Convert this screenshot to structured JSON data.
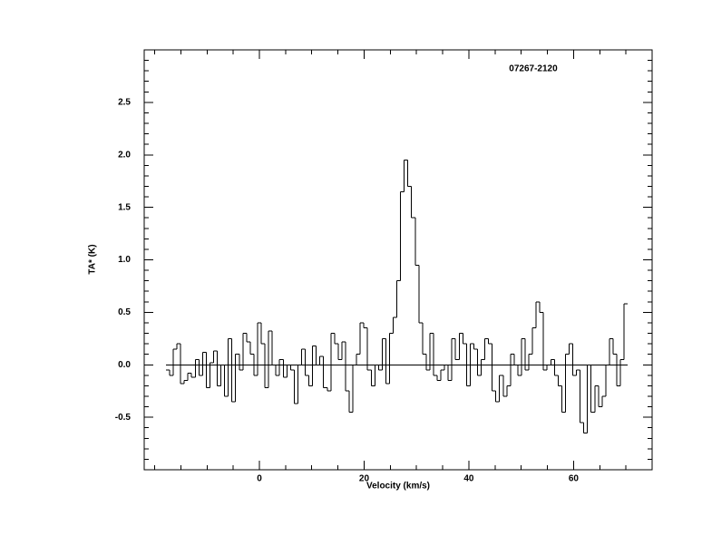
{
  "chart_data": {
    "type": "step",
    "annotation": "07267-2120",
    "xlabel": "Velocity (km/s)",
    "ylabel": "TA* (K)",
    "xlim": [
      -22,
      75
    ],
    "ylim": [
      -1,
      3
    ],
    "xticks": [
      0,
      20,
      40,
      60
    ],
    "yticks": [
      -0.5,
      {
        "value": 0,
        "label": "0.0"
      },
      0.5,
      {
        "value": 1,
        "label": "1.0"
      },
      1.5,
      {
        "value": 2,
        "label": "2.0"
      },
      2.5
    ],
    "baseline": 0,
    "color": "#000000",
    "x": [
      -17.5,
      -16.8,
      -16.1,
      -15.4,
      -14.7,
      -14.0,
      -13.3,
      -12.6,
      -11.9,
      -11.2,
      -10.5,
      -9.8,
      -9.1,
      -8.4,
      -7.7,
      -7.0,
      -6.3,
      -5.6,
      -4.9,
      -4.2,
      -3.5,
      -2.8,
      -2.1,
      -1.4,
      -0.7,
      0.0,
      0.7,
      1.4,
      2.1,
      2.8,
      3.5,
      4.2,
      4.9,
      5.6,
      6.3,
      7.0,
      7.7,
      8.4,
      9.1,
      9.8,
      10.5,
      11.2,
      11.9,
      12.6,
      13.3,
      14.0,
      14.7,
      15.4,
      16.1,
      16.8,
      17.5,
      18.2,
      18.9,
      19.6,
      20.3,
      21.0,
      21.7,
      22.4,
      23.1,
      23.8,
      24.5,
      25.2,
      25.9,
      26.6,
      27.3,
      28.0,
      28.7,
      29.4,
      30.1,
      30.8,
      31.5,
      32.2,
      32.9,
      33.6,
      34.3,
      35.0,
      35.7,
      36.4,
      37.1,
      37.8,
      38.5,
      39.2,
      39.9,
      40.6,
      41.3,
      42.0,
      42.7,
      43.4,
      44.1,
      44.8,
      45.5,
      46.2,
      46.9,
      47.6,
      48.3,
      49.0,
      49.7,
      50.4,
      51.1,
      51.8,
      52.5,
      53.2,
      53.9,
      54.6,
      55.3,
      56.0,
      56.7,
      57.4,
      58.1,
      58.8,
      59.5,
      60.2,
      60.9,
      61.6,
      62.3,
      63.0,
      63.7,
      64.4,
      65.1,
      65.8,
      66.5,
      67.2,
      67.9,
      68.6,
      69.3,
      70.0
    ],
    "values": [
      -0.05,
      -0.1,
      0.15,
      0.2,
      -0.18,
      -0.15,
      -0.08,
      -0.12,
      0.05,
      -0.1,
      0.12,
      -0.22,
      0.02,
      0.13,
      -0.2,
      0.0,
      -0.3,
      0.25,
      -0.35,
      0.1,
      -0.05,
      0.3,
      0.22,
      0.1,
      -0.1,
      0.4,
      0.2,
      -0.22,
      0.32,
      0.0,
      -0.1,
      0.05,
      -0.12,
      0.0,
      -0.05,
      -0.37,
      0.0,
      0.15,
      -0.1,
      -0.2,
      0.18,
      0.0,
      0.08,
      -0.22,
      -0.25,
      0.3,
      0.2,
      0.05,
      0.22,
      -0.25,
      -0.45,
      0.0,
      0.1,
      0.4,
      0.35,
      -0.05,
      -0.2,
      0.0,
      -0.05,
      0.25,
      -0.18,
      0.3,
      0.45,
      0.8,
      1.65,
      1.95,
      1.7,
      1.4,
      0.95,
      0.4,
      0.1,
      -0.05,
      0.3,
      -0.1,
      -0.15,
      -0.05,
      0.0,
      -0.15,
      0.25,
      0.05,
      0.3,
      0.2,
      -0.2,
      0.2,
      0.15,
      -0.1,
      0.05,
      0.25,
      0.2,
      -0.25,
      -0.35,
      -0.1,
      -0.3,
      -0.2,
      0.1,
      0.0,
      -0.1,
      0.25,
      -0.05,
      0.1,
      0.35,
      0.6,
      0.5,
      -0.05,
      0.0,
      0.05,
      -0.1,
      -0.2,
      -0.45,
      0.1,
      0.2,
      -0.1,
      -0.05,
      -0.55,
      -0.65,
      0.0,
      -0.45,
      -0.2,
      -0.4,
      -0.3,
      0.0,
      0.25,
      0.1,
      -0.2,
      0.05,
      0.58
    ]
  }
}
